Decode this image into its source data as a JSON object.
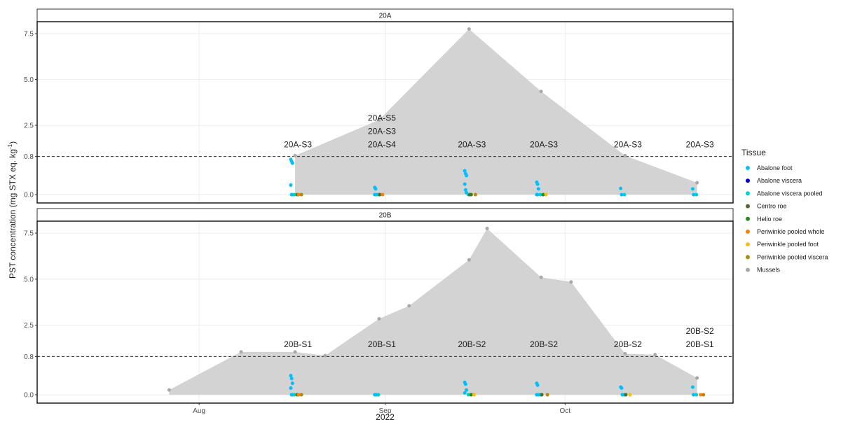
{
  "chart_data": {
    "type": "area",
    "ylabel_main": "PST concentration (mg STX eq. kg",
    "ylabel_sup": "-1",
    "ylabel_end": ")",
    "xlabel": "2022",
    "x_ticks": [
      {
        "label": "Aug",
        "date": "2022-08-01"
      },
      {
        "label": "Sep",
        "date": "2022-09-01"
      },
      {
        "label": "Oct",
        "date": "2022-10-01"
      }
    ],
    "x_range": [
      "2022-07-05",
      "2022-10-29"
    ],
    "y_ticks": [
      {
        "label": "0.0",
        "value": 0
      },
      {
        "label": "0.8",
        "value": 0.8
      },
      {
        "label": "2.5",
        "value": 2.5
      },
      {
        "label": "5.0",
        "value": 5.0
      },
      {
        "label": "7.5",
        "value": 7.5
      }
    ],
    "reference_line": 0.8,
    "legend": {
      "title": "Tissue",
      "items": [
        {
          "name": "Abalone foot",
          "color": "#00bfff"
        },
        {
          "name": "Abalone viscera",
          "color": "#0000cd"
        },
        {
          "name": "Abalone viscera pooled",
          "color": "#00ced1"
        },
        {
          "name": "Centro roe",
          "color": "#556b2f"
        },
        {
          "name": "Helio roe",
          "color": "#228b22"
        },
        {
          "name": "Periwinkle pooled whole",
          "color": "#ff7f0e"
        },
        {
          "name": "Periwinkle pooled foot",
          "color": "#ffb90f"
        },
        {
          "name": "Periwinkle pooled viscera",
          "color": "#b8860b"
        },
        {
          "name": "Mussels",
          "color": "#a9a9a9"
        }
      ]
    },
    "panels": [
      {
        "strip": "20A",
        "mussels": [
          {
            "date": "2022-08-17",
            "value": 0.85
          },
          {
            "date": "2022-08-31",
            "value": 2.8
          },
          {
            "date": "2022-09-15",
            "value": 7.75
          },
          {
            "date": "2022-09-27",
            "value": 4.35
          },
          {
            "date": "2022-10-11",
            "value": 0.85
          },
          {
            "date": "2022-10-23",
            "value": 0.25
          }
        ],
        "site_labels": [
          {
            "date": "2022-08-17",
            "lines": [
              "20A-S3"
            ]
          },
          {
            "date": "2022-08-31",
            "lines": [
              "20A-S5",
              "20A-S3",
              "20A-S4"
            ]
          },
          {
            "date": "2022-09-15",
            "lines": [
              "20A-S3"
            ]
          },
          {
            "date": "2022-09-27",
            "lines": [
              "20A-S3"
            ]
          },
          {
            "date": "2022-10-11",
            "lines": [
              "20A-S3"
            ]
          },
          {
            "date": "2022-10-23",
            "lines": [
              "20A-S3"
            ]
          }
        ],
        "tissue_points": [
          {
            "date": "2022-08-17",
            "tissue": "Abalone foot",
            "values": [
              0.74,
              0.7,
              0.66,
              0.2,
              0.0,
              0.0
            ]
          },
          {
            "date": "2022-08-17",
            "tissue": "Abalone viscera pooled",
            "values": [
              0.0
            ]
          },
          {
            "date": "2022-08-17",
            "tissue": "Helio roe",
            "values": [
              0.0
            ]
          },
          {
            "date": "2022-08-17",
            "tissue": "Periwinkle pooled whole",
            "values": [
              0.0
            ]
          },
          {
            "date": "2022-08-17",
            "tissue": "Periwinkle pooled viscera",
            "values": [
              0.0
            ]
          },
          {
            "date": "2022-08-31",
            "tissue": "Abalone foot",
            "values": [
              0.15,
              0.12,
              0.0,
              0.0
            ]
          },
          {
            "date": "2022-08-31",
            "tissue": "Abalone viscera pooled",
            "values": [
              0.0
            ]
          },
          {
            "date": "2022-08-31",
            "tissue": "Centro roe",
            "values": [
              0.0
            ]
          },
          {
            "date": "2022-08-31",
            "tissue": "Periwinkle pooled whole",
            "values": [
              0.0
            ]
          },
          {
            "date": "2022-09-15",
            "tissue": "Abalone foot",
            "values": [
              0.5,
              0.44,
              0.4,
              0.22,
              0.1,
              0.04
            ]
          },
          {
            "date": "2022-09-15",
            "tissue": "Abalone viscera pooled",
            "values": [
              0.0
            ]
          },
          {
            "date": "2022-09-15",
            "tissue": "Helio roe",
            "values": [
              0.0
            ]
          },
          {
            "date": "2022-09-15",
            "tissue": "Centro roe",
            "values": [
              0.0
            ]
          },
          {
            "date": "2022-09-15",
            "tissue": "Periwinkle pooled viscera",
            "values": [
              0.0
            ]
          },
          {
            "date": "2022-09-27",
            "tissue": "Abalone foot",
            "values": [
              0.26,
              0.22,
              0.12,
              0.0,
              0.0
            ]
          },
          {
            "date": "2022-09-27",
            "tissue": "Abalone viscera pooled",
            "values": [
              0.0
            ]
          },
          {
            "date": "2022-09-27",
            "tissue": "Helio roe",
            "values": [
              0.0
            ]
          },
          {
            "date": "2022-09-27",
            "tissue": "Periwinkle pooled foot",
            "values": [
              0.0
            ]
          },
          {
            "date": "2022-10-11",
            "tissue": "Abalone foot",
            "values": [
              0.13,
              0.0
            ]
          },
          {
            "date": "2022-10-11",
            "tissue": "Abalone viscera pooled",
            "values": [
              0.0
            ]
          },
          {
            "date": "2022-10-23",
            "tissue": "Abalone foot",
            "values": [
              0.12,
              0.0
            ]
          },
          {
            "date": "2022-10-23",
            "tissue": "Abalone viscera pooled",
            "values": [
              0.0
            ]
          }
        ]
      },
      {
        "strip": "20B",
        "mussels": [
          {
            "date": "2022-07-27",
            "value": 0.1
          },
          {
            "date": "2022-08-08",
            "value": 1.05
          },
          {
            "date": "2022-08-17",
            "value": 1.05
          },
          {
            "date": "2022-08-22",
            "value": 0.85
          },
          {
            "date": "2022-08-31",
            "value": 2.85
          },
          {
            "date": "2022-09-05",
            "value": 3.55
          },
          {
            "date": "2022-09-15",
            "value": 6.05
          },
          {
            "date": "2022-09-18",
            "value": 7.75
          },
          {
            "date": "2022-09-27",
            "value": 5.1
          },
          {
            "date": "2022-10-02",
            "value": 4.85
          },
          {
            "date": "2022-10-11",
            "value": 0.95
          },
          {
            "date": "2022-10-16",
            "value": 0.9
          },
          {
            "date": "2022-10-23",
            "value": 0.35
          }
        ],
        "site_labels": [
          {
            "date": "2022-08-17",
            "lines": [
              "20B-S1"
            ]
          },
          {
            "date": "2022-08-31",
            "lines": [
              "20B-S1"
            ]
          },
          {
            "date": "2022-09-15",
            "lines": [
              "20B-S2"
            ]
          },
          {
            "date": "2022-09-27",
            "lines": [
              "20B-S2"
            ]
          },
          {
            "date": "2022-10-11",
            "lines": [
              "20B-S2"
            ]
          },
          {
            "date": "2022-10-23",
            "lines": [
              "20B-S2",
              "20B-S1"
            ]
          }
        ],
        "tissue_points": [
          {
            "date": "2022-08-17",
            "tissue": "Abalone foot",
            "values": [
              0.4,
              0.34,
              0.24,
              0.14,
              0.0,
              0.0
            ]
          },
          {
            "date": "2022-08-17",
            "tissue": "Abalone viscera pooled",
            "values": [
              0.0
            ]
          },
          {
            "date": "2022-08-17",
            "tissue": "Helio roe",
            "values": [
              0.0
            ]
          },
          {
            "date": "2022-08-17",
            "tissue": "Periwinkle pooled whole",
            "values": [
              0.0
            ]
          },
          {
            "date": "2022-08-17",
            "tissue": "Periwinkle pooled viscera",
            "values": [
              0.0
            ]
          },
          {
            "date": "2022-08-31",
            "tissue": "Abalone foot",
            "values": [
              0.0,
              0.0,
              0.0
            ]
          },
          {
            "date": "2022-08-31",
            "tissue": "Abalone viscera pooled",
            "values": [
              0.0
            ]
          },
          {
            "date": "2022-09-15",
            "tissue": "Abalone foot",
            "values": [
              0.26,
              0.22,
              0.1,
              0.04
            ]
          },
          {
            "date": "2022-09-15",
            "tissue": "Abalone viscera pooled",
            "values": [
              0.0
            ]
          },
          {
            "date": "2022-09-15",
            "tissue": "Helio roe",
            "values": [
              0.0
            ]
          },
          {
            "date": "2022-09-15",
            "tissue": "Periwinkle pooled foot",
            "values": [
              0.0
            ]
          },
          {
            "date": "2022-09-27",
            "tissue": "Abalone foot",
            "values": [
              0.24,
              0.2,
              0.0,
              0.0
            ]
          },
          {
            "date": "2022-09-27",
            "tissue": "Abalone viscera pooled",
            "values": [
              0.0
            ]
          },
          {
            "date": "2022-09-27",
            "tissue": "Centro roe",
            "values": [
              0.0
            ]
          },
          {
            "date": "2022-09-27",
            "tissue": "Periwinkle pooled viscera",
            "values": [
              0.0
            ]
          },
          {
            "date": "2022-10-11",
            "tissue": "Abalone foot",
            "values": [
              0.16,
              0.14,
              0.0
            ]
          },
          {
            "date": "2022-10-11",
            "tissue": "Abalone viscera pooled",
            "values": [
              0.0
            ]
          },
          {
            "date": "2022-10-11",
            "tissue": "Centro roe",
            "values": [
              0.0
            ]
          },
          {
            "date": "2022-10-11",
            "tissue": "Periwinkle pooled foot",
            "values": [
              0.0
            ]
          },
          {
            "date": "2022-10-23",
            "tissue": "Abalone foot",
            "values": [
              0.16,
              0.0
            ]
          },
          {
            "date": "2022-10-23",
            "tissue": "Abalone viscera pooled",
            "values": [
              0.0
            ]
          },
          {
            "date": "2022-10-23",
            "tissue": "Periwinkle pooled whole",
            "values": [
              0.0
            ]
          },
          {
            "date": "2022-10-23",
            "tissue": "Periwinkle pooled viscera",
            "values": [
              0.0
            ]
          }
        ]
      }
    ]
  }
}
